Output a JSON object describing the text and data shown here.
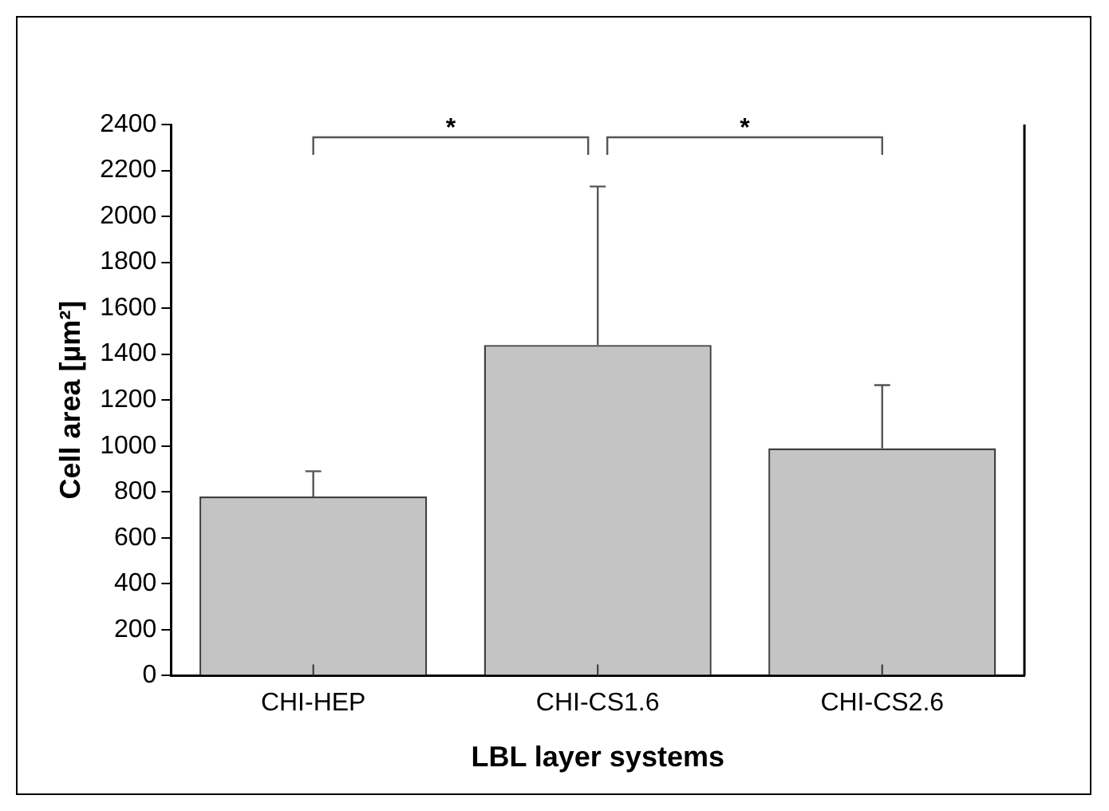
{
  "chart_data": {
    "type": "bar",
    "xlabel": "LBL layer systems",
    "ylabel": "Cell area [µm²]",
    "categories": [
      "CHI-HEP",
      "CHI-CS1.6",
      "CHI-CS2.6"
    ],
    "values": [
      780,
      1440,
      990
    ],
    "errors": [
      [
        780,
        890
      ],
      [
        1440,
        2130
      ],
      [
        990,
        1265
      ]
    ],
    "color": "#c4c4c4",
    "ylim": [
      0,
      2400
    ],
    "yticks": [
      0,
      200,
      400,
      600,
      800,
      1000,
      1200,
      1400,
      1600,
      1800,
      2000,
      2200,
      2400
    ],
    "grid": false,
    "legend": false,
    "annotations": [
      "*",
      "*"
    ]
  }
}
